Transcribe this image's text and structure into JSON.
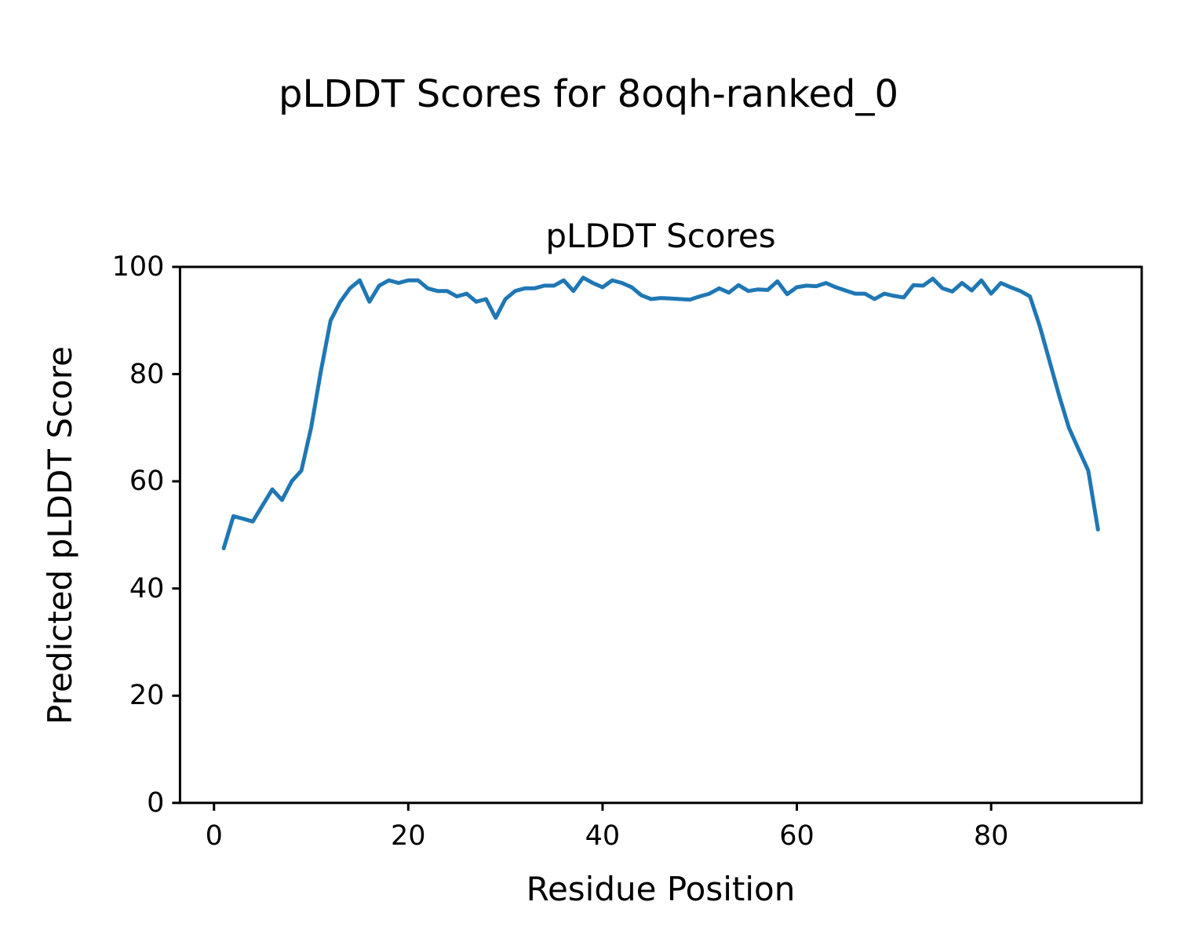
{
  "figure": {
    "suptitle": "pLDDT Scores for 8oqh-ranked_0"
  },
  "chart_data": {
    "type": "line",
    "title": "pLDDT Scores",
    "suptitle": "pLDDT Scores for 8oqh-ranked_0",
    "xlabel": "Residue Position",
    "ylabel": "Predicted pLDDT Score",
    "xlim": [
      -3.5,
      95.5
    ],
    "ylim": [
      0,
      100
    ],
    "x_ticks": [
      0,
      20,
      40,
      60,
      80
    ],
    "y_ticks": [
      0,
      20,
      40,
      60,
      80,
      100
    ],
    "legend": null,
    "grid": false,
    "line_color": "#1f77b4",
    "line_width": 5,
    "series_name": "pLDDT",
    "x": [
      1,
      2,
      3,
      4,
      5,
      6,
      7,
      8,
      9,
      10,
      11,
      12,
      13,
      14,
      15,
      16,
      17,
      18,
      19,
      20,
      21,
      22,
      23,
      24,
      25,
      26,
      27,
      28,
      29,
      30,
      31,
      32,
      33,
      34,
      35,
      36,
      37,
      38,
      39,
      40,
      41,
      42,
      43,
      44,
      45,
      46,
      47,
      48,
      49,
      50,
      51,
      52,
      53,
      54,
      55,
      56,
      57,
      58,
      59,
      60,
      61,
      62,
      63,
      64,
      65,
      66,
      67,
      68,
      69,
      70,
      71,
      72,
      73,
      74,
      75,
      76,
      77,
      78,
      79,
      80,
      81,
      82,
      83,
      84,
      85,
      86,
      87,
      88,
      89,
      90,
      91
    ],
    "y": [
      47.5,
      53.5,
      53,
      52.5,
      55.5,
      58.5,
      56.5,
      60,
      62,
      70,
      80.5,
      90,
      93.5,
      96,
      97.5,
      93.5,
      96.5,
      97.5,
      97,
      97.5,
      97.5,
      96,
      95.5,
      95.5,
      94.5,
      95,
      93.5,
      94,
      90.5,
      94,
      95.5,
      96,
      96,
      96.5,
      96.5,
      97.5,
      95.5,
      98,
      97,
      96.2,
      97.5,
      97,
      96.2,
      94.7,
      94,
      94.2,
      94.1,
      94,
      93.9,
      94.5,
      95,
      96,
      95.2,
      96.6,
      95.5,
      95.8,
      95.7,
      97.3,
      94.9,
      96.2,
      96.5,
      96.4,
      97,
      96.2,
      95.6,
      95,
      95,
      94,
      95,
      94.6,
      94.3,
      96.6,
      96.5,
      97.8,
      96,
      95.4,
      97,
      95.6,
      97.5,
      95,
      97,
      96.2,
      95.5,
      94.5,
      89,
      82.5,
      76,
      70,
      66,
      62,
      51
    ]
  }
}
